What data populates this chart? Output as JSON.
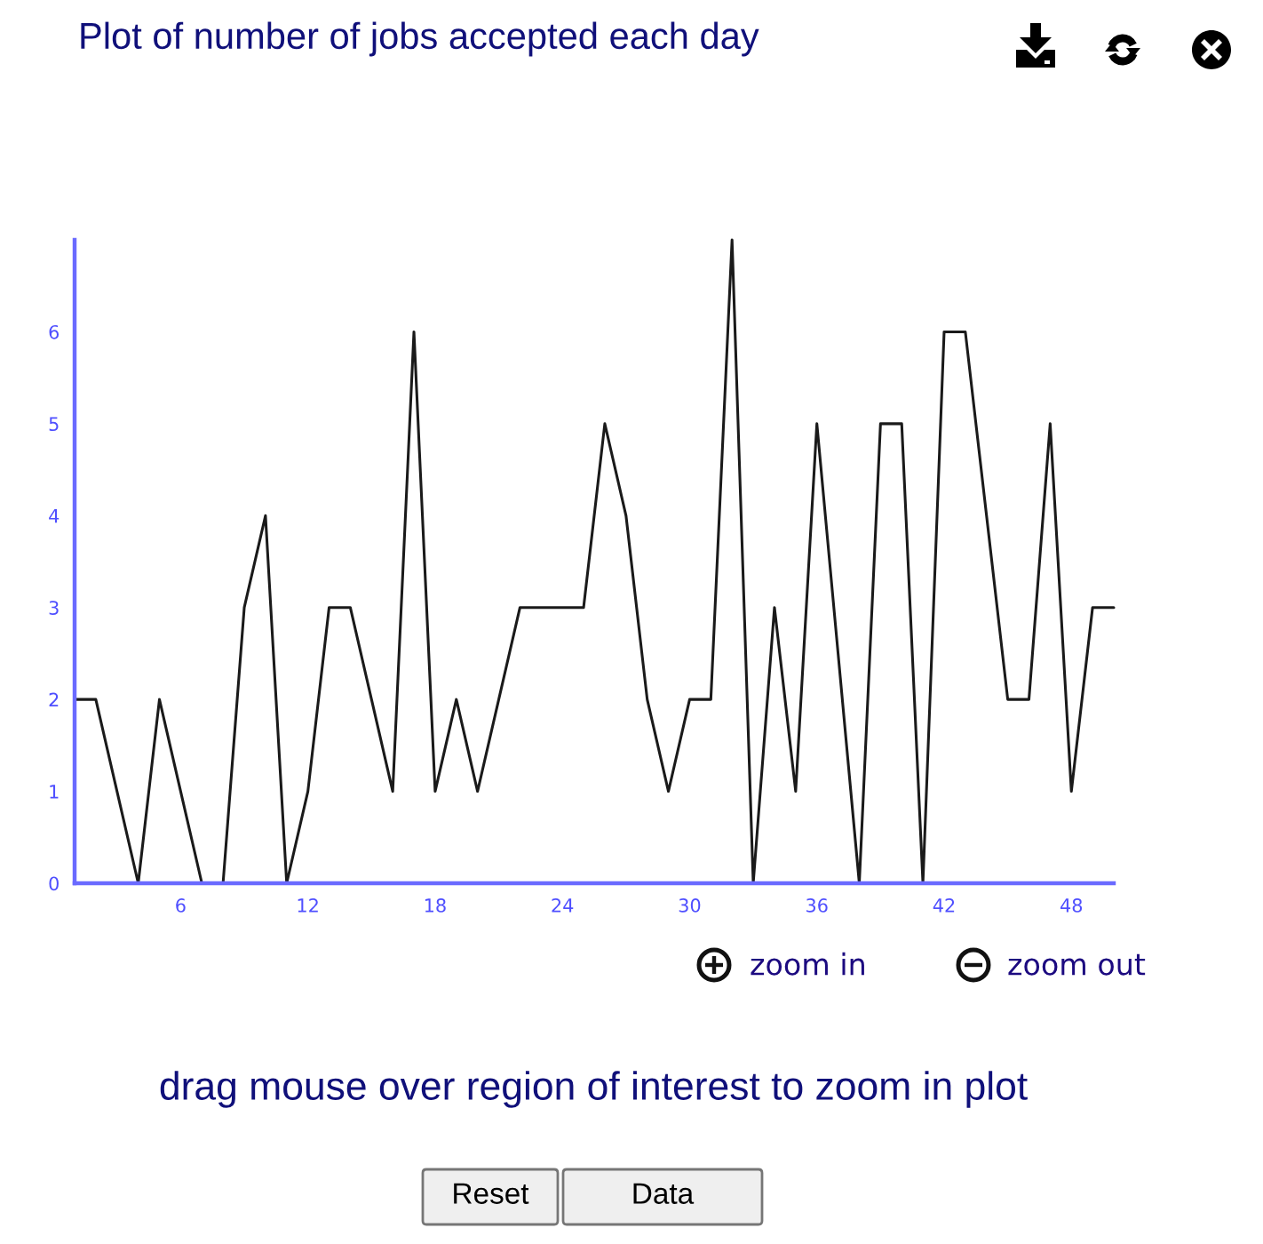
{
  "chart_data": {
    "type": "line",
    "title": "Plot of number of jobs accepted each day",
    "x": [
      1,
      2,
      3,
      4,
      5,
      6,
      7,
      8,
      9,
      10,
      11,
      12,
      13,
      14,
      15,
      16,
      17,
      18,
      19,
      20,
      21,
      22,
      23,
      24,
      25,
      26,
      27,
      28,
      29,
      30,
      31,
      32,
      33,
      34,
      35,
      36,
      37,
      38,
      39,
      40,
      41,
      42,
      43,
      44,
      45,
      46,
      47,
      48,
      49,
      50
    ],
    "series": [
      {
        "color": "#1a1a1a",
        "values": [
          2,
          2,
          1,
          0,
          2,
          1,
          0,
          0,
          3,
          4,
          0,
          1,
          3,
          3,
          2,
          1,
          6,
          1,
          2,
          1,
          2,
          3,
          3,
          3,
          3,
          5,
          4,
          2,
          1,
          2,
          2,
          7,
          0,
          3,
          1,
          5,
          2.5,
          0,
          5,
          5,
          0,
          6,
          6,
          4,
          2,
          2,
          5,
          1,
          3,
          3
        ]
      }
    ],
    "xlim": [
      1,
      50
    ],
    "ylim": [
      0,
      7
    ],
    "xticks": [
      6,
      12,
      18,
      24,
      30,
      36,
      42,
      48
    ],
    "yticks": [
      0,
      1,
      2,
      3,
      4,
      5,
      6
    ],
    "annotations": [
      "zoom in",
      "zoom out",
      "drag mouse over region of interest to zoom in plot",
      "Reset",
      "Data"
    ]
  }
}
